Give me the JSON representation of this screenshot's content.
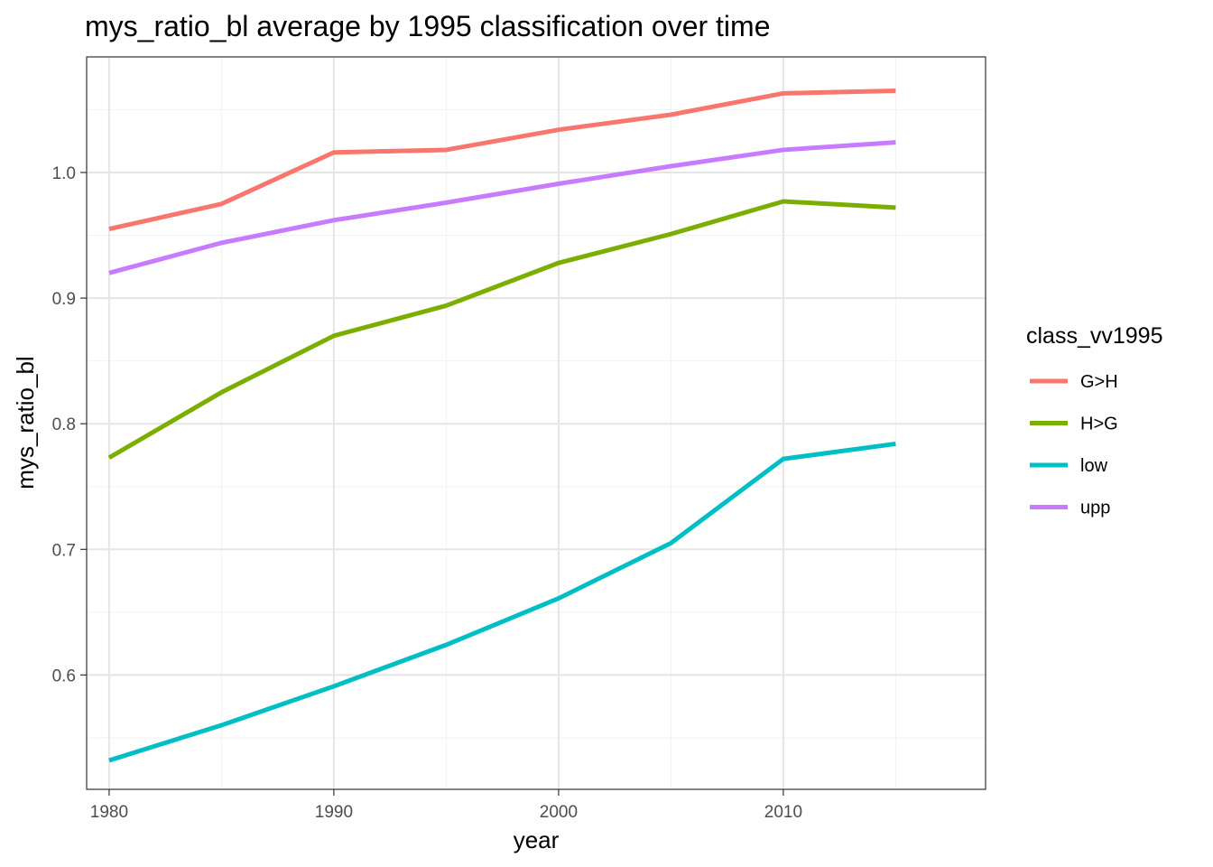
{
  "chart_data": {
    "type": "line",
    "title": "mys_ratio_bl average by 1995 classification over time",
    "xlabel": "year",
    "ylabel": "mys_ratio_bl",
    "x": [
      1980,
      1985,
      1990,
      1995,
      2000,
      2005,
      2010,
      2015
    ],
    "xlim": [
      1979,
      2019
    ],
    "ylim": [
      0.509,
      1.092
    ],
    "x_ticks": [
      1980,
      1990,
      2000,
      2010
    ],
    "x_tick_labels": [
      "1980",
      "1990",
      "2000",
      "2010"
    ],
    "y_ticks": [
      0.6,
      0.7,
      0.8,
      0.9,
      1.0
    ],
    "y_tick_labels": [
      "0.6",
      "0.7",
      "0.8",
      "0.9",
      "1.0"
    ],
    "grid": true,
    "legend": {
      "title": "class_vv1995",
      "placement": "right"
    },
    "series": [
      {
        "name": "G>H",
        "color": "#F8766D",
        "values": [
          0.955,
          0.975,
          1.016,
          1.018,
          1.034,
          1.046,
          1.063,
          1.065
        ]
      },
      {
        "name": "H>G",
        "color": "#7CAE00",
        "values": [
          0.773,
          0.825,
          0.87,
          0.894,
          0.928,
          0.951,
          0.977,
          0.972
        ]
      },
      {
        "name": "low",
        "color": "#00BFC4",
        "values": [
          0.532,
          0.56,
          0.591,
          0.624,
          0.661,
          0.705,
          0.772,
          0.784
        ]
      },
      {
        "name": "upp",
        "color": "#C77CFF",
        "values": [
          0.92,
          0.944,
          0.962,
          0.976,
          0.991,
          1.005,
          1.018,
          1.024
        ]
      }
    ]
  }
}
